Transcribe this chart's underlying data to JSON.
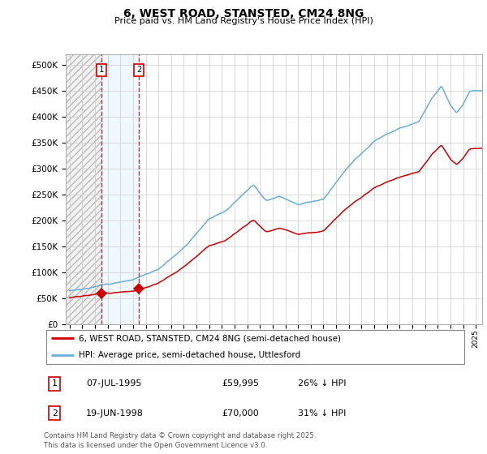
{
  "title": "6, WEST ROAD, STANSTED, CM24 8NG",
  "subtitle": "Price paid vs. HM Land Registry's House Price Index (HPI)",
  "ylim": [
    0,
    520000
  ],
  "yticks": [
    0,
    50000,
    100000,
    150000,
    200000,
    250000,
    300000,
    350000,
    400000,
    450000,
    500000
  ],
  "ytick_labels": [
    "£0",
    "£50K",
    "£100K",
    "£150K",
    "£200K",
    "£250K",
    "£300K",
    "£350K",
    "£400K",
    "£450K",
    "£500K"
  ],
  "sale1_date": 1995.52,
  "sale1_price": 59995,
  "sale1_label": "1",
  "sale2_date": 1998.47,
  "sale2_price": 70000,
  "sale2_label": "2",
  "hpi_color": "#6baed6",
  "price_color": "#cc0000",
  "marker_color": "#cc0000",
  "shade_color": "#ddeeff",
  "grid_color": "#cccccc",
  "legend_line1": "6, WEST ROAD, STANSTED, CM24 8NG (semi-detached house)",
  "legend_line2": "HPI: Average price, semi-detached house, Uttlesford",
  "table_row1": [
    "1",
    "07-JUL-1995",
    "£59,995",
    "26% ↓ HPI"
  ],
  "table_row2": [
    "2",
    "19-JUN-1998",
    "£70,000",
    "31% ↓ HPI"
  ],
  "footnote": "Contains HM Land Registry data © Crown copyright and database right 2025.\nThis data is licensed under the Open Government Licence v3.0.",
  "xlim_start": 1992.7,
  "xlim_end": 2025.5
}
